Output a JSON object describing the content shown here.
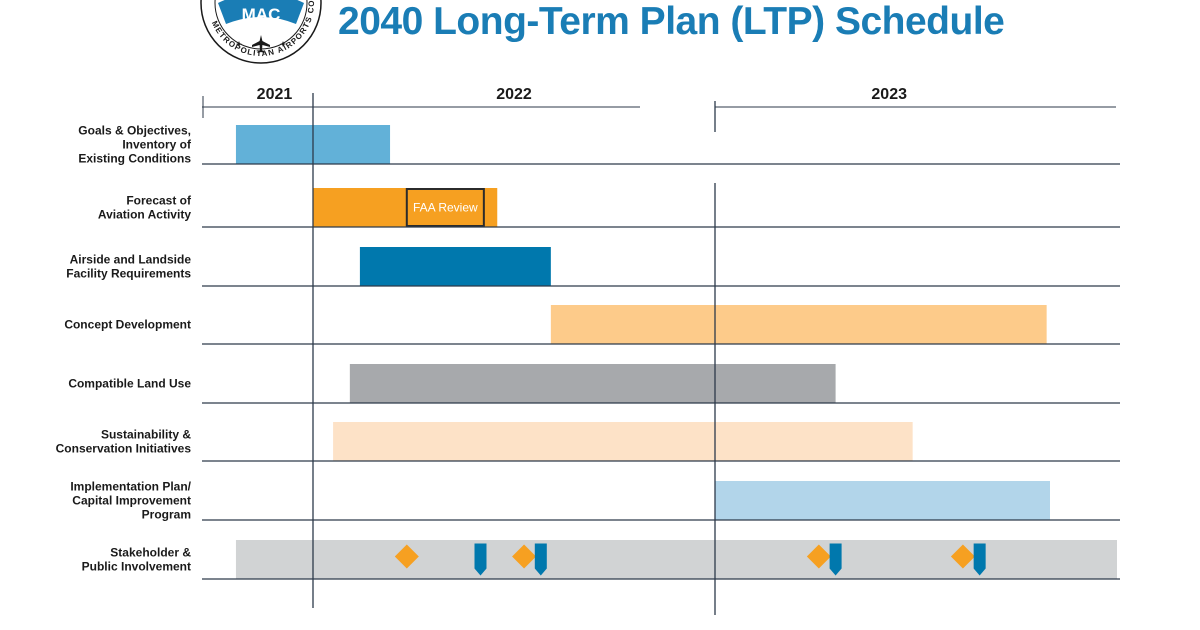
{
  "header": {
    "title": "2040 Long-Term Plan (LTP) Schedule",
    "logo": {
      "abbrev": "MAC",
      "ring_text": "METROPOLITAN AIRPORTS COMMISSION",
      "color": "#1a7db5"
    }
  },
  "chart_data": {
    "type": "gantt",
    "title": "2040 Long-Term Plan (LTP) Schedule",
    "time_unit": "month index (0 = start of 2022)",
    "years": [
      {
        "label": "2021",
        "start": -2.3,
        "end": 0
      },
      {
        "label": "2022",
        "start": 0,
        "end": 12
      },
      {
        "label": "2023",
        "start": 12,
        "end": 22.4
      }
    ],
    "tasks": [
      {
        "label": "Goals & Objectives,\nInventory of\nExisting Conditions",
        "start": -2.3,
        "end": 2.3,
        "color": "#62b1d8"
      },
      {
        "label": "Forecast of\nAviation Activity",
        "start": 0,
        "end": 5.5,
        "color": "#f6a021",
        "annotation": {
          "label": "FAA Review",
          "start": 2.8,
          "end": 5.1
        }
      },
      {
        "label": "Airside and Landside\nFacility Requirements",
        "start": 1.4,
        "end": 7.1,
        "color": "#0078ad"
      },
      {
        "label": "Concept Development",
        "start": 7.1,
        "end": 21.9,
        "color": "#fdcb8a"
      },
      {
        "label": "Compatible Land Use",
        "start": 1.1,
        "end": 15.6,
        "color": "#a7a9ac"
      },
      {
        "label": "Sustainability &\nConservation Initiatives",
        "start": 0.6,
        "end": 17.9,
        "color": "#fde2c7"
      },
      {
        "label": "Implementation Plan/\nCapital Improvement\nProgram",
        "start": 12,
        "end": 22.0,
        "color": "#b2d5ea"
      },
      {
        "label": "Stakeholder &\nPublic Involvement",
        "start": -2.3,
        "end": 24.0,
        "color": "#d1d3d4",
        "milestones": [
          {
            "type": "diamond",
            "at": 2.8,
            "color": "#f6a021"
          },
          {
            "type": "marker",
            "at": 5.0,
            "color": "#0078ad"
          },
          {
            "type": "diamond",
            "at": 6.3,
            "color": "#f6a021"
          },
          {
            "type": "marker",
            "at": 6.8,
            "color": "#0078ad"
          },
          {
            "type": "diamond",
            "at": 15.1,
            "color": "#f6a021"
          },
          {
            "type": "marker",
            "at": 15.6,
            "color": "#0078ad"
          },
          {
            "type": "diamond",
            "at": 19.4,
            "color": "#f6a021"
          },
          {
            "type": "marker",
            "at": 19.9,
            "color": "#0078ad"
          }
        ]
      }
    ],
    "grid": true,
    "legend": "none"
  }
}
